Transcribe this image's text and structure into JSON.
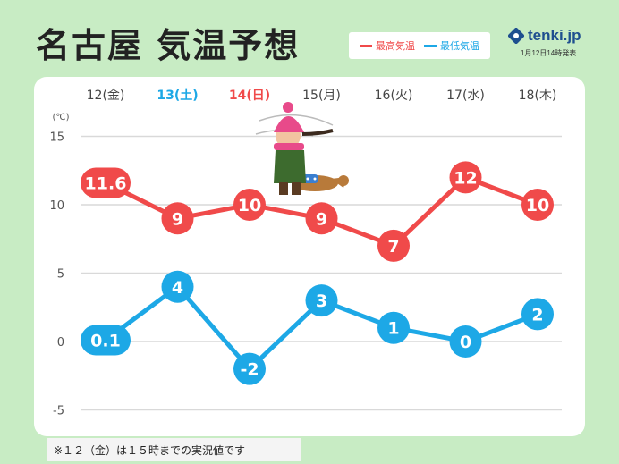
{
  "title": "名古屋 気温予想",
  "legend": {
    "high_label": "最高気温",
    "low_label": "最低気温",
    "high_color": "#f04a4a",
    "low_color": "#1da8e6"
  },
  "brand": {
    "name": "tenki.jp",
    "published": "1月12日14時発表"
  },
  "footnote": "※１２（金）は１５時までの実況値です",
  "chart_data": {
    "type": "line",
    "unit_label": "(℃)",
    "categories": [
      "12(金)",
      "13(土)",
      "14(日)",
      "15(月)",
      "16(火)",
      "17(水)",
      "18(木)"
    ],
    "category_colors": [
      "#444444",
      "#1da8e6",
      "#f04a4a",
      "#444444",
      "#444444",
      "#444444",
      "#444444"
    ],
    "series": [
      {
        "name": "最高気温",
        "color": "#f04a4a",
        "values": [
          11.6,
          9,
          10,
          9,
          7,
          12,
          10
        ],
        "labels": [
          "11.6",
          "9",
          "10",
          "9",
          "7",
          "12",
          "10"
        ]
      },
      {
        "name": "最低気温",
        "color": "#1da8e6",
        "values": [
          0.1,
          4,
          -2,
          3,
          1,
          0,
          2
        ],
        "labels": [
          "0.1",
          "4",
          "-2",
          "3",
          "1",
          "0",
          "2"
        ]
      }
    ],
    "yticks": [
      15,
      10,
      5,
      0,
      -5
    ],
    "ylim": [
      -5,
      15
    ],
    "grid": true,
    "illustration": "girl-with-dog-in-wind-icon"
  }
}
